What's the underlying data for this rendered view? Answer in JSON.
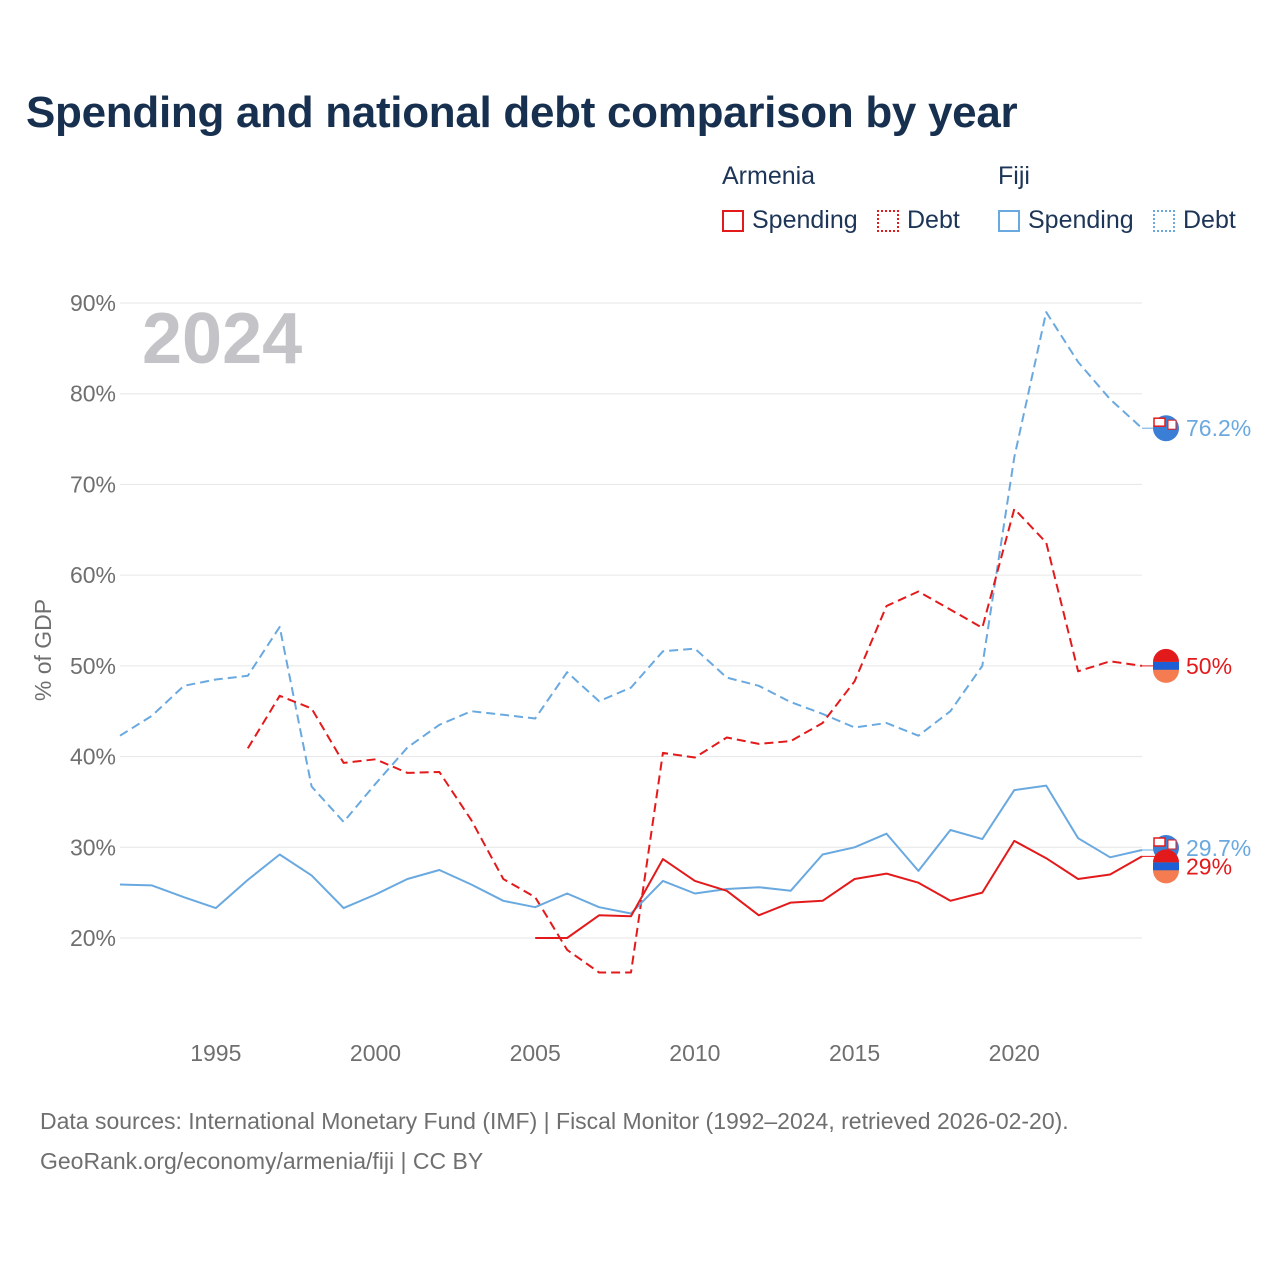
{
  "title": "Spending and national debt comparison by year",
  "legend": {
    "group_armenia": "Armenia",
    "group_fiji": "Fiji",
    "spending": "Spending",
    "debt": "Debt"
  },
  "year_label": "2024",
  "footer": {
    "line1": "Data sources: International Monetary Fund (IMF) | Fiscal Monitor (1992–2024, retrieved 2026-02-20).",
    "line2": "GeoRank.org/economy/armenia/fiji | CC BY"
  },
  "colors": {
    "armenia": "#e31a1c",
    "fiji": "#6aa9e0",
    "grid": "#e6e6e6",
    "axis_text": "#6f6f6f",
    "year": "#c3c3c8"
  },
  "chart_data": {
    "type": "line",
    "title": "Spending and national debt comparison by year",
    "xlabel": "",
    "ylabel": "% of GDP",
    "xlim": [
      1992,
      2024
    ],
    "ylim": [
      10,
      90
    ],
    "x_ticks": [
      1995,
      2000,
      2005,
      2010,
      2015,
      2020
    ],
    "y_ticks": [
      20,
      30,
      40,
      50,
      60,
      70,
      80,
      90
    ],
    "y_tick_labels": [
      "20%",
      "30%",
      "40%",
      "50%",
      "60%",
      "70%",
      "80%",
      "90%"
    ],
    "x": [
      1992,
      1993,
      1994,
      1995,
      1996,
      1997,
      1998,
      1999,
      2000,
      2001,
      2002,
      2003,
      2004,
      2005,
      2006,
      2007,
      2008,
      2009,
      2010,
      2011,
      2012,
      2013,
      2014,
      2015,
      2016,
      2017,
      2018,
      2019,
      2020,
      2021,
      2022,
      2023,
      2024
    ],
    "series": [
      {
        "name": "Fiji Debt",
        "country": "Fiji",
        "kind": "debt",
        "end_label": "76.2%",
        "values": [
          42.3,
          44.5,
          47.8,
          48.5,
          48.9,
          54.3,
          36.7,
          32.8,
          37.0,
          41.0,
          43.5,
          45.0,
          44.6,
          44.2,
          49.3,
          46.1,
          47.6,
          51.6,
          51.9,
          48.7,
          47.8,
          46.0,
          44.7,
          43.2,
          43.7,
          42.3,
          45.0,
          50.0,
          73.0,
          89.0,
          83.5,
          79.4,
          76.2
        ]
      },
      {
        "name": "Armenia Debt",
        "country": "Armenia",
        "kind": "debt",
        "end_label": "50%",
        "values": [
          null,
          null,
          null,
          null,
          40.9,
          46.7,
          45.3,
          39.3,
          39.7,
          38.2,
          38.3,
          33.0,
          26.5,
          24.5,
          18.7,
          16.2,
          16.2,
          40.4,
          39.9,
          42.1,
          41.4,
          41.7,
          43.7,
          48.3,
          56.6,
          58.2,
          56.2,
          54.2,
          67.3,
          63.6,
          49.4,
          50.5,
          50.0
        ]
      },
      {
        "name": "Fiji Spending",
        "country": "Fiji",
        "kind": "spending",
        "end_label": "29.7%",
        "values": [
          25.9,
          25.8,
          24.5,
          23.3,
          26.4,
          29.2,
          26.9,
          23.3,
          24.8,
          26.5,
          27.5,
          25.9,
          24.1,
          23.4,
          24.9,
          23.4,
          22.7,
          26.3,
          24.9,
          25.4,
          25.6,
          25.2,
          29.2,
          30.0,
          31.5,
          27.4,
          31.9,
          30.9,
          36.3,
          36.8,
          31.0,
          28.9,
          29.7
        ]
      },
      {
        "name": "Armenia Spending",
        "country": "Armenia",
        "kind": "spending",
        "end_label": "29%",
        "values": [
          null,
          null,
          null,
          null,
          null,
          null,
          null,
          null,
          null,
          null,
          null,
          null,
          null,
          20.0,
          20.0,
          22.5,
          22.4,
          28.7,
          26.3,
          25.2,
          22.5,
          23.9,
          24.1,
          26.5,
          27.1,
          26.1,
          24.1,
          25.0,
          30.7,
          28.8,
          26.5,
          27.0,
          29.0
        ]
      }
    ]
  }
}
